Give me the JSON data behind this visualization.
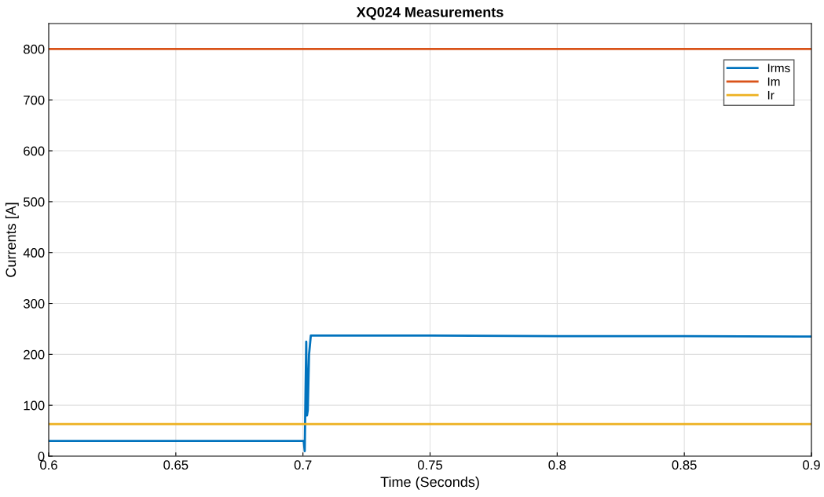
{
  "chart_data": {
    "type": "line",
    "title": "XQ024 Measurements",
    "xlabel": "Time (Seconds)",
    "ylabel": "Currents [A]",
    "xlim": [
      0.6,
      0.9
    ],
    "xticks": [
      0.6,
      0.65,
      0.7,
      0.75,
      0.8,
      0.85,
      0.9
    ],
    "ylim": [
      0,
      850
    ],
    "yticks": [
      0,
      100,
      200,
      300,
      400,
      500,
      600,
      700,
      800
    ],
    "grid": true,
    "legend": "top right",
    "marker": "none",
    "line_style": "solid",
    "series": [
      {
        "name": "Irms",
        "color": "#0072bd",
        "x": [
          0.6,
          0.65,
          0.6995,
          0.7003,
          0.7007,
          0.701,
          0.7013,
          0.7016,
          0.7019,
          0.7024,
          0.7031,
          0.75,
          0.8,
          0.85,
          0.9
        ],
        "values": [
          30,
          30,
          30,
          30,
          10,
          120,
          225,
          80,
          90,
          200,
          237,
          237,
          236,
          236,
          235
        ]
      },
      {
        "name": "Im",
        "color": "#d95319",
        "x": [
          0.6,
          0.9
        ],
        "values": [
          800,
          800
        ]
      },
      {
        "name": "Ir",
        "color": "#edb120",
        "x": [
          0.6,
          0.9
        ],
        "values": [
          63,
          63
        ]
      }
    ]
  }
}
